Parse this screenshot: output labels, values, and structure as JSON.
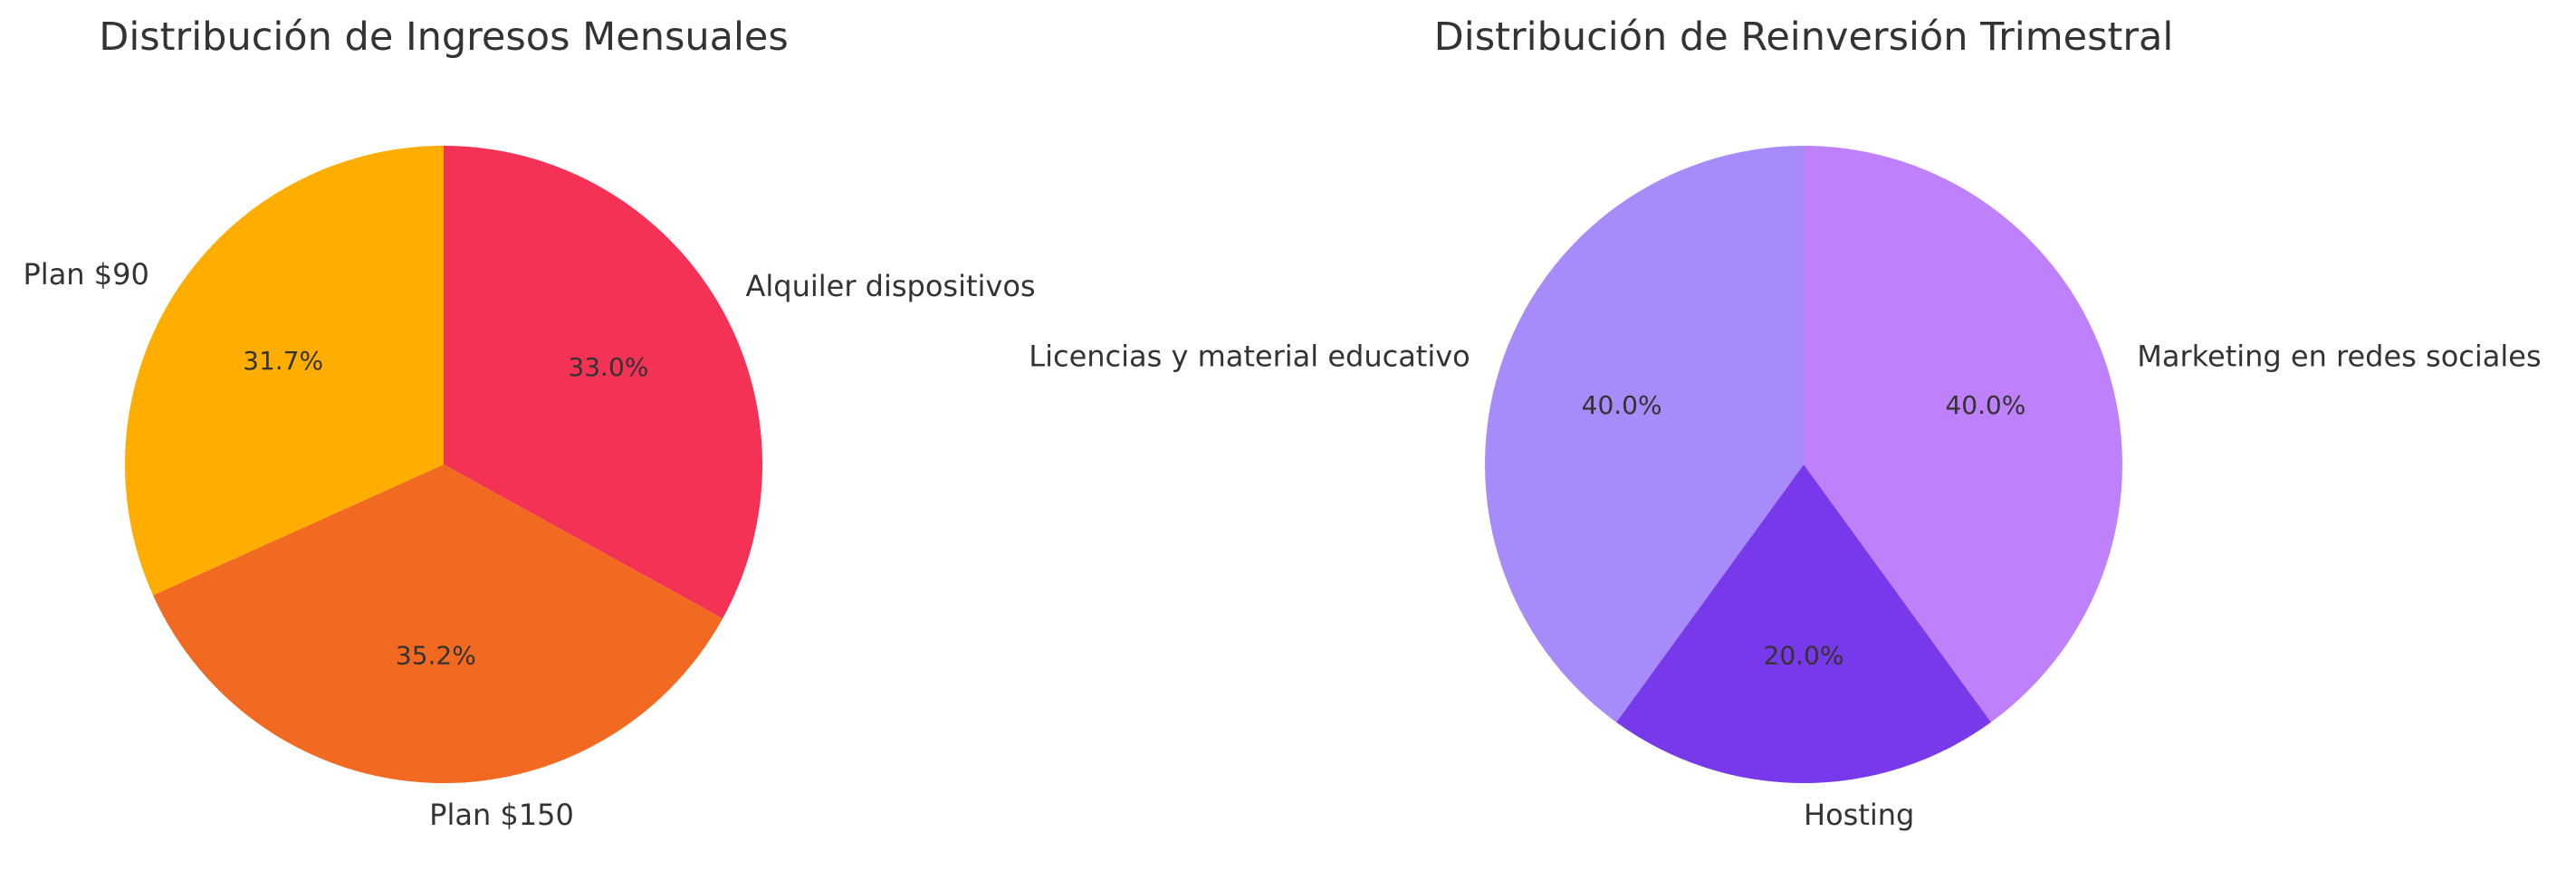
{
  "chart_data": [
    {
      "type": "pie",
      "title": "Distribución de Ingresos Mensuales",
      "slices": [
        {
          "label": "Alquiler dispositivos",
          "value": 33.0,
          "pct_label": "33.0%",
          "color": "#F43256"
        },
        {
          "label": "Plan $150",
          "value": 35.2,
          "pct_label": "35.2%",
          "color": "#F26A21"
        },
        {
          "label": "Plan $90",
          "value": 31.7,
          "pct_label": "31.7%",
          "color": "#FFAE00"
        }
      ],
      "start_angle": 90,
      "direction": "clockwise"
    },
    {
      "type": "pie",
      "title": "Distribución de Reinversión Trimestral",
      "slices": [
        {
          "label": "Marketing en redes sociales",
          "value": 40.0,
          "pct_label": "40.0%",
          "color": "#BF81FA"
        },
        {
          "label": "Hosting",
          "value": 20.0,
          "pct_label": "20.0%",
          "color": "#7839EA"
        },
        {
          "label": "Licencias y material educativo",
          "value": 40.0,
          "pct_label": "40.0%",
          "color": "#A88BFA"
        }
      ],
      "start_angle": 90,
      "direction": "clockwise"
    }
  ]
}
